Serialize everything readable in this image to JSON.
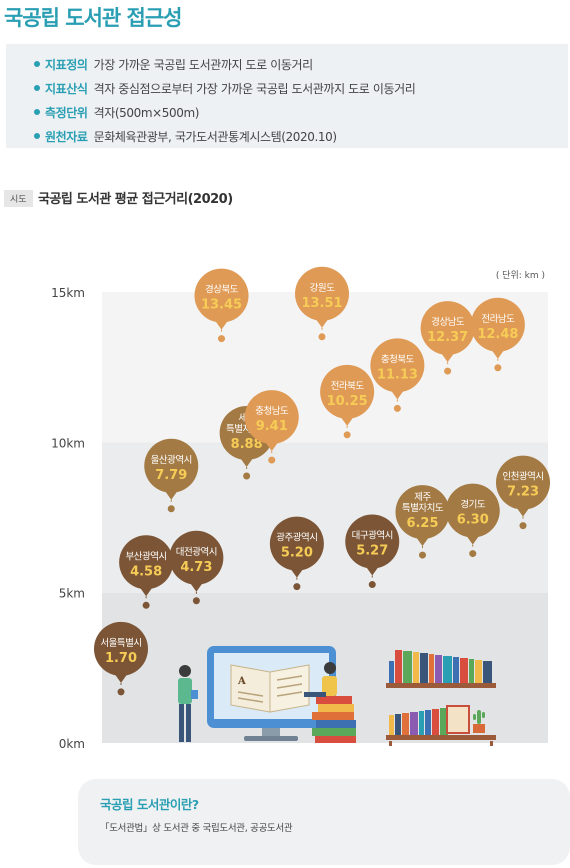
{
  "page": {
    "title": "국공립 도서관 접근성"
  },
  "info": [
    {
      "label": "지표정의",
      "value": "가장 가까운 국공립 도서관까지 도로 이동거리"
    },
    {
      "label": "지표산식",
      "value": "격자 중심점으로부터 가장 가까운 국공립 도서관까지 도로 이동거리"
    },
    {
      "label": "측정단위",
      "value": "격자(500m×500m)"
    },
    {
      "label": "원천자료",
      "value": "문화체육관광부, 국가도서관통계시스템(2020.10)"
    }
  ],
  "section": {
    "tag": "시도",
    "title": "국공립 도서관 평균 접근거리(2020)"
  },
  "chart_data": {
    "type": "scatter",
    "title": "국공립 도서관 평균 접근거리(2020)",
    "unit_note": "( 단위: km )",
    "ylim": [
      0,
      15
    ],
    "yticks": [
      0,
      5,
      10,
      15
    ],
    "ytick_labels": [
      "0km",
      "5km",
      "10km",
      "15km"
    ],
    "points": [
      {
        "region": [
          "서울특별시"
        ],
        "value": 1.7
      },
      {
        "region": [
          "부산광역시"
        ],
        "value": 4.58
      },
      {
        "region": [
          "울산광역시"
        ],
        "value": 7.79
      },
      {
        "region": [
          "대전광역시"
        ],
        "value": 4.73
      },
      {
        "region": [
          "경상북도"
        ],
        "value": 13.45
      },
      {
        "region": [
          "세종",
          "특별자치시"
        ],
        "value": 8.88
      },
      {
        "region": [
          "충청남도"
        ],
        "value": 9.41
      },
      {
        "region": [
          "광주광역시"
        ],
        "value": 5.2
      },
      {
        "region": [
          "강원도"
        ],
        "value": 13.51
      },
      {
        "region": [
          "전라북도"
        ],
        "value": 10.25
      },
      {
        "region": [
          "대구광역시"
        ],
        "value": 5.27
      },
      {
        "region": [
          "충청북도"
        ],
        "value": 11.13
      },
      {
        "region": [
          "제주",
          "특별자치도"
        ],
        "value": 6.25
      },
      {
        "region": [
          "경상남도"
        ],
        "value": 12.37
      },
      {
        "region": [
          "경기도"
        ],
        "value": 6.3
      },
      {
        "region": [
          "전라남도"
        ],
        "value": 12.48
      },
      {
        "region": [
          "인천광역시"
        ],
        "value": 7.23
      }
    ],
    "colors": {
      "low": "#7b5535",
      "mid": "#a37a43",
      "high": "#df9a55",
      "value_text": "#f6cc57",
      "band_dark": "#e1e3e5",
      "band_mid": "#ebeced",
      "band_light": "#f4f4f4"
    }
  },
  "note": {
    "title": "국공립 도서관이란?",
    "text": "「도서관법」상 도서관 중 국립도서관, 공공도서관"
  }
}
